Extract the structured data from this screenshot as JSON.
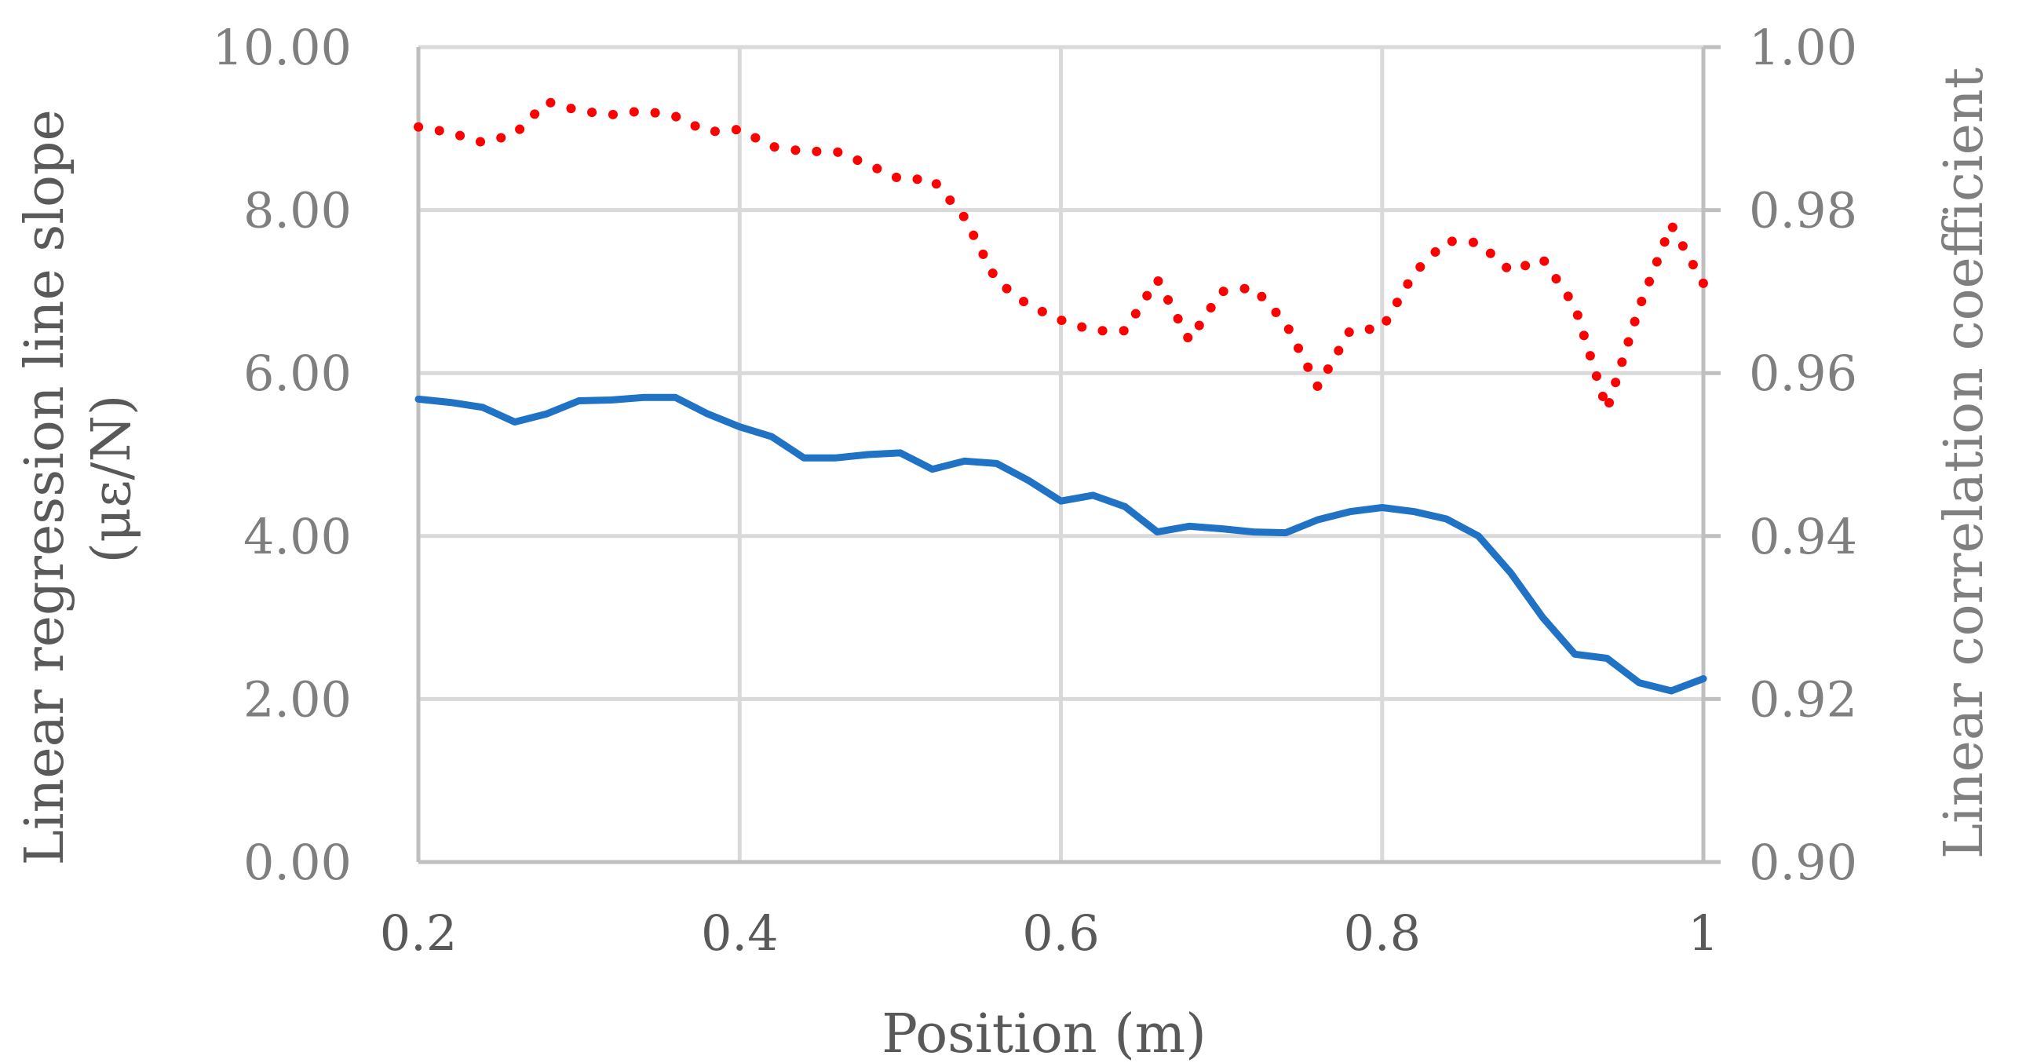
{
  "chart_data": {
    "type": "line",
    "title": "",
    "xlabel": "Position (m)",
    "ylabel_left": "Linear regression line slope (με/N)",
    "ylabel_left_lines": [
      "Linear regression line slope",
      "(με/N)"
    ],
    "ylabel_right": "Linear correlation coefficient",
    "xlim": [
      0.2,
      1.0
    ],
    "ylim_left": [
      0,
      10
    ],
    "ylim_right": [
      0.9,
      1.0
    ],
    "x_ticks": [
      0.2,
      0.4,
      0.6,
      0.8,
      1.0
    ],
    "x_tick_labels": [
      "0.2",
      "0.4",
      "0.6",
      "0.8",
      "1"
    ],
    "y_left_ticks": [
      0,
      2,
      4,
      6,
      8,
      10
    ],
    "y_left_tick_labels": [
      "0.00",
      "2.00",
      "4.00",
      "6.00",
      "8.00",
      "10.00"
    ],
    "y_right_ticks": [
      0.9,
      0.92,
      0.94,
      0.96,
      0.98,
      1.0
    ],
    "y_right_tick_labels": [
      "0.90",
      "0.92",
      "0.94",
      "0.96",
      "0.98",
      "1.00"
    ],
    "grid": true,
    "legend": "none",
    "series": [
      {
        "axis": "left",
        "style": "solid",
        "color": "#1f72c4",
        "x": [
          0.2,
          0.22,
          0.24,
          0.26,
          0.28,
          0.3,
          0.32,
          0.34,
          0.36,
          0.38,
          0.4,
          0.42,
          0.44,
          0.46,
          0.48,
          0.5,
          0.52,
          0.54,
          0.56,
          0.58,
          0.6,
          0.62,
          0.64,
          0.66,
          0.68,
          0.7,
          0.72,
          0.74,
          0.76,
          0.78,
          0.8,
          0.82,
          0.84,
          0.86,
          0.88,
          0.9,
          0.92,
          0.94,
          0.96,
          0.98,
          1.0
        ],
        "y": [
          5.68,
          5.64,
          5.58,
          5.4,
          5.5,
          5.66,
          5.67,
          5.7,
          5.7,
          5.5,
          5.34,
          5.22,
          4.96,
          4.96,
          5.0,
          5.02,
          4.82,
          4.92,
          4.89,
          4.68,
          4.43,
          4.5,
          4.36,
          4.05,
          4.12,
          4.09,
          4.05,
          4.04,
          4.2,
          4.3,
          4.35,
          4.3,
          4.21,
          4.0,
          3.55,
          3.0,
          2.55,
          2.5,
          2.2,
          2.1,
          2.25
        ]
      },
      {
        "axis": "right",
        "style": "dotted",
        "color": "#ff0000",
        "x": [
          0.2,
          0.22,
          0.24,
          0.26,
          0.28,
          0.3,
          0.32,
          0.34,
          0.36,
          0.38,
          0.4,
          0.42,
          0.44,
          0.46,
          0.48,
          0.5,
          0.52,
          0.54,
          0.56,
          0.58,
          0.6,
          0.62,
          0.64,
          0.66,
          0.68,
          0.7,
          0.72,
          0.74,
          0.76,
          0.78,
          0.8,
          0.82,
          0.84,
          0.86,
          0.88,
          0.9,
          0.92,
          0.94,
          0.96,
          0.98,
          1.0
        ],
        "y": [
          0.9902,
          0.9895,
          0.9883,
          0.9893,
          0.9933,
          0.9922,
          0.9917,
          0.9922,
          0.9915,
          0.9896,
          0.9899,
          0.9878,
          0.9872,
          0.9872,
          0.9856,
          0.9838,
          0.9838,
          0.9791,
          0.9713,
          0.9683,
          0.9665,
          0.9652,
          0.9652,
          0.9715,
          0.964,
          0.97,
          0.9705,
          0.9661,
          0.9583,
          0.9652,
          0.9655,
          0.9723,
          0.9762,
          0.976,
          0.9725,
          0.974,
          0.9682,
          0.9555,
          0.968,
          0.9782,
          0.971
        ]
      }
    ]
  }
}
